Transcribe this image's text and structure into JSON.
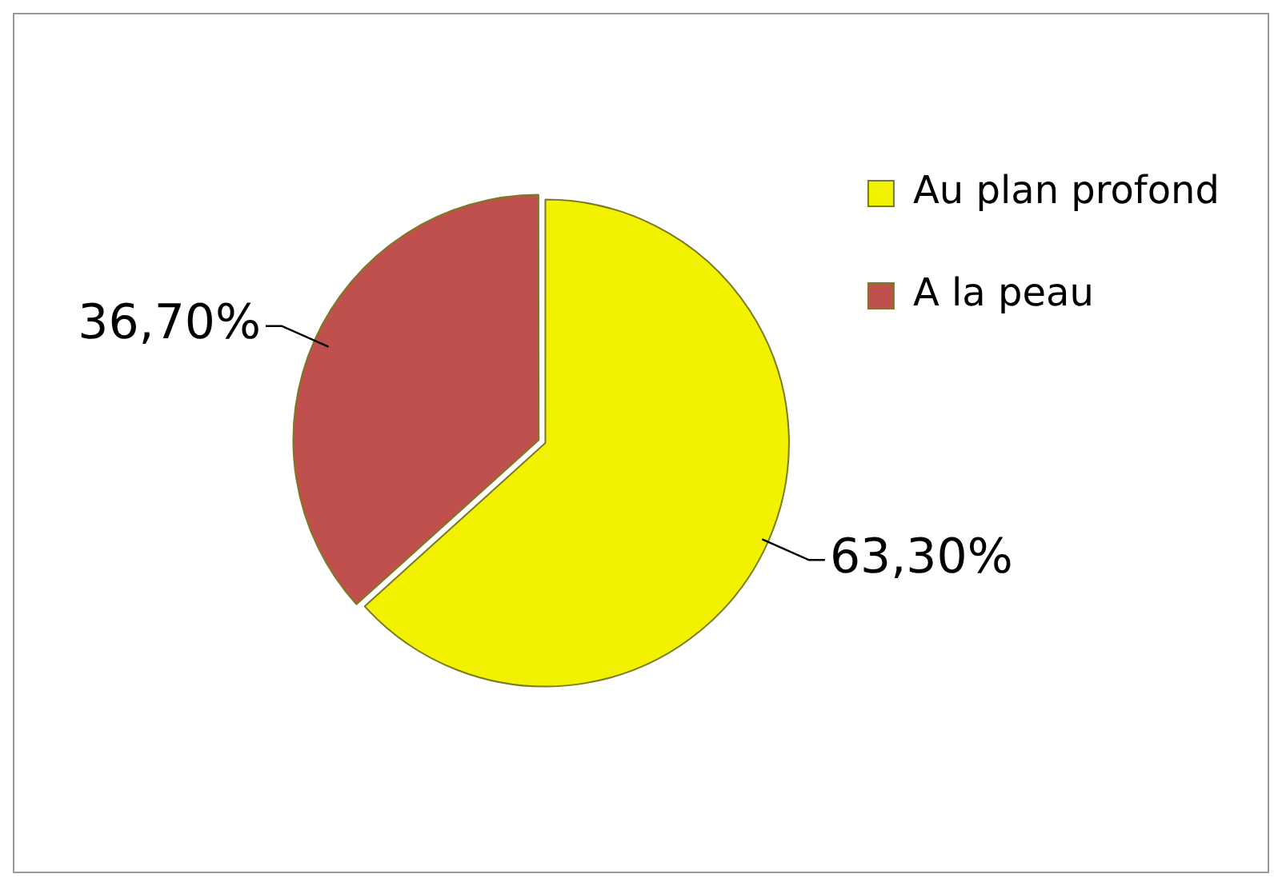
{
  "chart_data": {
    "type": "pie",
    "categories": [
      "Au plan profond",
      "A la peau"
    ],
    "values": [
      63.3,
      36.7
    ],
    "colors": [
      "#f2f200",
      "#c0504d"
    ],
    "value_labels": [
      "63,30%",
      "36,70%"
    ],
    "legend": "top right"
  }
}
